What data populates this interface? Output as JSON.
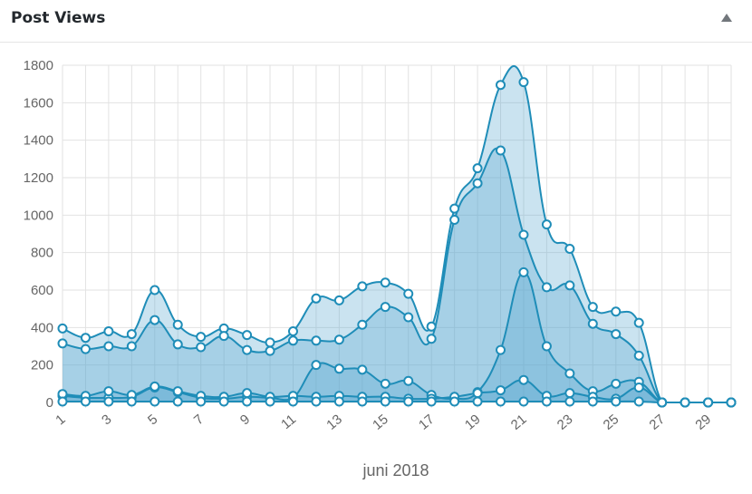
{
  "widget": {
    "title": "Post Views",
    "toggle_icon": "triangle-up-icon"
  },
  "colors": {
    "line": "#1f8db8",
    "fill": "#5aa9cf",
    "point_fill": "#ffffff",
    "grid": "#e2e2e2",
    "axis_text": "#666666"
  },
  "chart_data": {
    "type": "area",
    "xlabel": "juni 2018",
    "ylabel": "",
    "ylim": [
      0,
      1800
    ],
    "yticks": [
      0,
      200,
      400,
      600,
      800,
      1000,
      1200,
      1400,
      1600,
      1800
    ],
    "x": [
      1,
      2,
      3,
      4,
      5,
      6,
      7,
      8,
      9,
      10,
      11,
      12,
      13,
      14,
      15,
      16,
      17,
      18,
      19,
      20,
      21,
      22,
      23,
      24,
      25,
      26,
      27,
      28,
      29,
      30
    ],
    "xtick_labels": [
      "1",
      "3",
      "5",
      "7",
      "9",
      "11",
      "13",
      "15",
      "17",
      "19",
      "21",
      "23",
      "25",
      "27",
      "29"
    ],
    "grid": true,
    "legend": "none",
    "series": [
      {
        "values": [
          395,
          345,
          380,
          365,
          600,
          415,
          350,
          395,
          360,
          320,
          380,
          555,
          545,
          620,
          640,
          580,
          405,
          1035,
          1250,
          1695,
          1710,
          950,
          820,
          510,
          485,
          425,
          0,
          0,
          0,
          0
        ]
      },
      {
        "values": [
          315,
          285,
          300,
          300,
          440,
          310,
          295,
          355,
          280,
          275,
          330,
          330,
          335,
          415,
          510,
          455,
          340,
          975,
          1170,
          1345,
          895,
          615,
          625,
          420,
          365,
          250,
          0,
          0,
          0,
          0
        ]
      },
      {
        "values": [
          35,
          25,
          25,
          30,
          80,
          55,
          25,
          20,
          30,
          25,
          25,
          200,
          180,
          175,
          100,
          115,
          40,
          20,
          55,
          280,
          695,
          300,
          155,
          60,
          100,
          110,
          0,
          0,
          0,
          0
        ]
      },
      {
        "values": [
          45,
          35,
          60,
          40,
          85,
          60,
          35,
          30,
          50,
          30,
          35,
          30,
          35,
          30,
          30,
          20,
          20,
          30,
          50,
          65,
          120,
          35,
          50,
          30,
          20,
          80,
          0,
          0,
          0,
          0
        ]
      },
      {
        "values": [
          5,
          5,
          5,
          5,
          5,
          5,
          5,
          5,
          5,
          5,
          5,
          5,
          5,
          5,
          5,
          5,
          5,
          5,
          5,
          5,
          5,
          5,
          5,
          5,
          5,
          5,
          0,
          0,
          0,
          0
        ]
      }
    ]
  }
}
